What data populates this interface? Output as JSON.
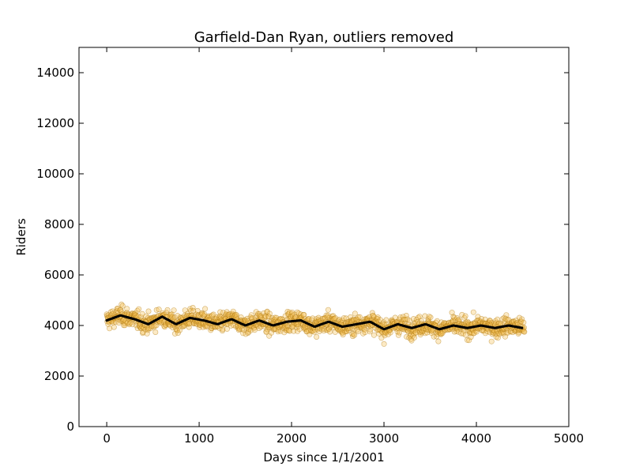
{
  "chart_data": {
    "type": "scatter",
    "title": "Garfield-Dan Ryan, outliers removed",
    "xlabel": "Days since 1/1/2001",
    "ylabel": "Riders",
    "xlim": [
      -300,
      5000
    ],
    "ylim": [
      0,
      15000
    ],
    "x_ticks": [
      0,
      1000,
      2000,
      3000,
      4000,
      5000
    ],
    "y_ticks": [
      0,
      2000,
      4000,
      6000,
      8000,
      10000,
      12000,
      14000
    ],
    "grid": false,
    "legend": "none",
    "colors": {
      "points_fill": "#f5c25a",
      "points_edge": "#b07a10",
      "trend_line": "#000000"
    },
    "series": [
      {
        "kind": "scatter",
        "x_range": [
          0,
          4520
        ],
        "approx_points": 1500,
        "typical_riders_start": 4400,
        "typical_riders_end": 3600,
        "riders_range": [
          3000,
          5100
        ]
      },
      {
        "kind": "trend",
        "x": [
          0,
          150,
          300,
          450,
          600,
          750,
          900,
          1050,
          1200,
          1350,
          1500,
          1650,
          1800,
          1950,
          2100,
          2250,
          2400,
          2550,
          2700,
          2850,
          3000,
          3150,
          3300,
          3450,
          3600,
          3750,
          3900,
          4050,
          4200,
          4350,
          4500
        ],
        "y": [
          4200,
          4400,
          4250,
          4050,
          4350,
          4050,
          4300,
          4200,
          4050,
          4250,
          4000,
          4200,
          4000,
          4150,
          4200,
          3950,
          4150,
          3950,
          4050,
          4150,
          3850,
          4050,
          3900,
          4050,
          3850,
          4000,
          3900,
          4000,
          3900,
          4000,
          3900
        ]
      }
    ]
  }
}
